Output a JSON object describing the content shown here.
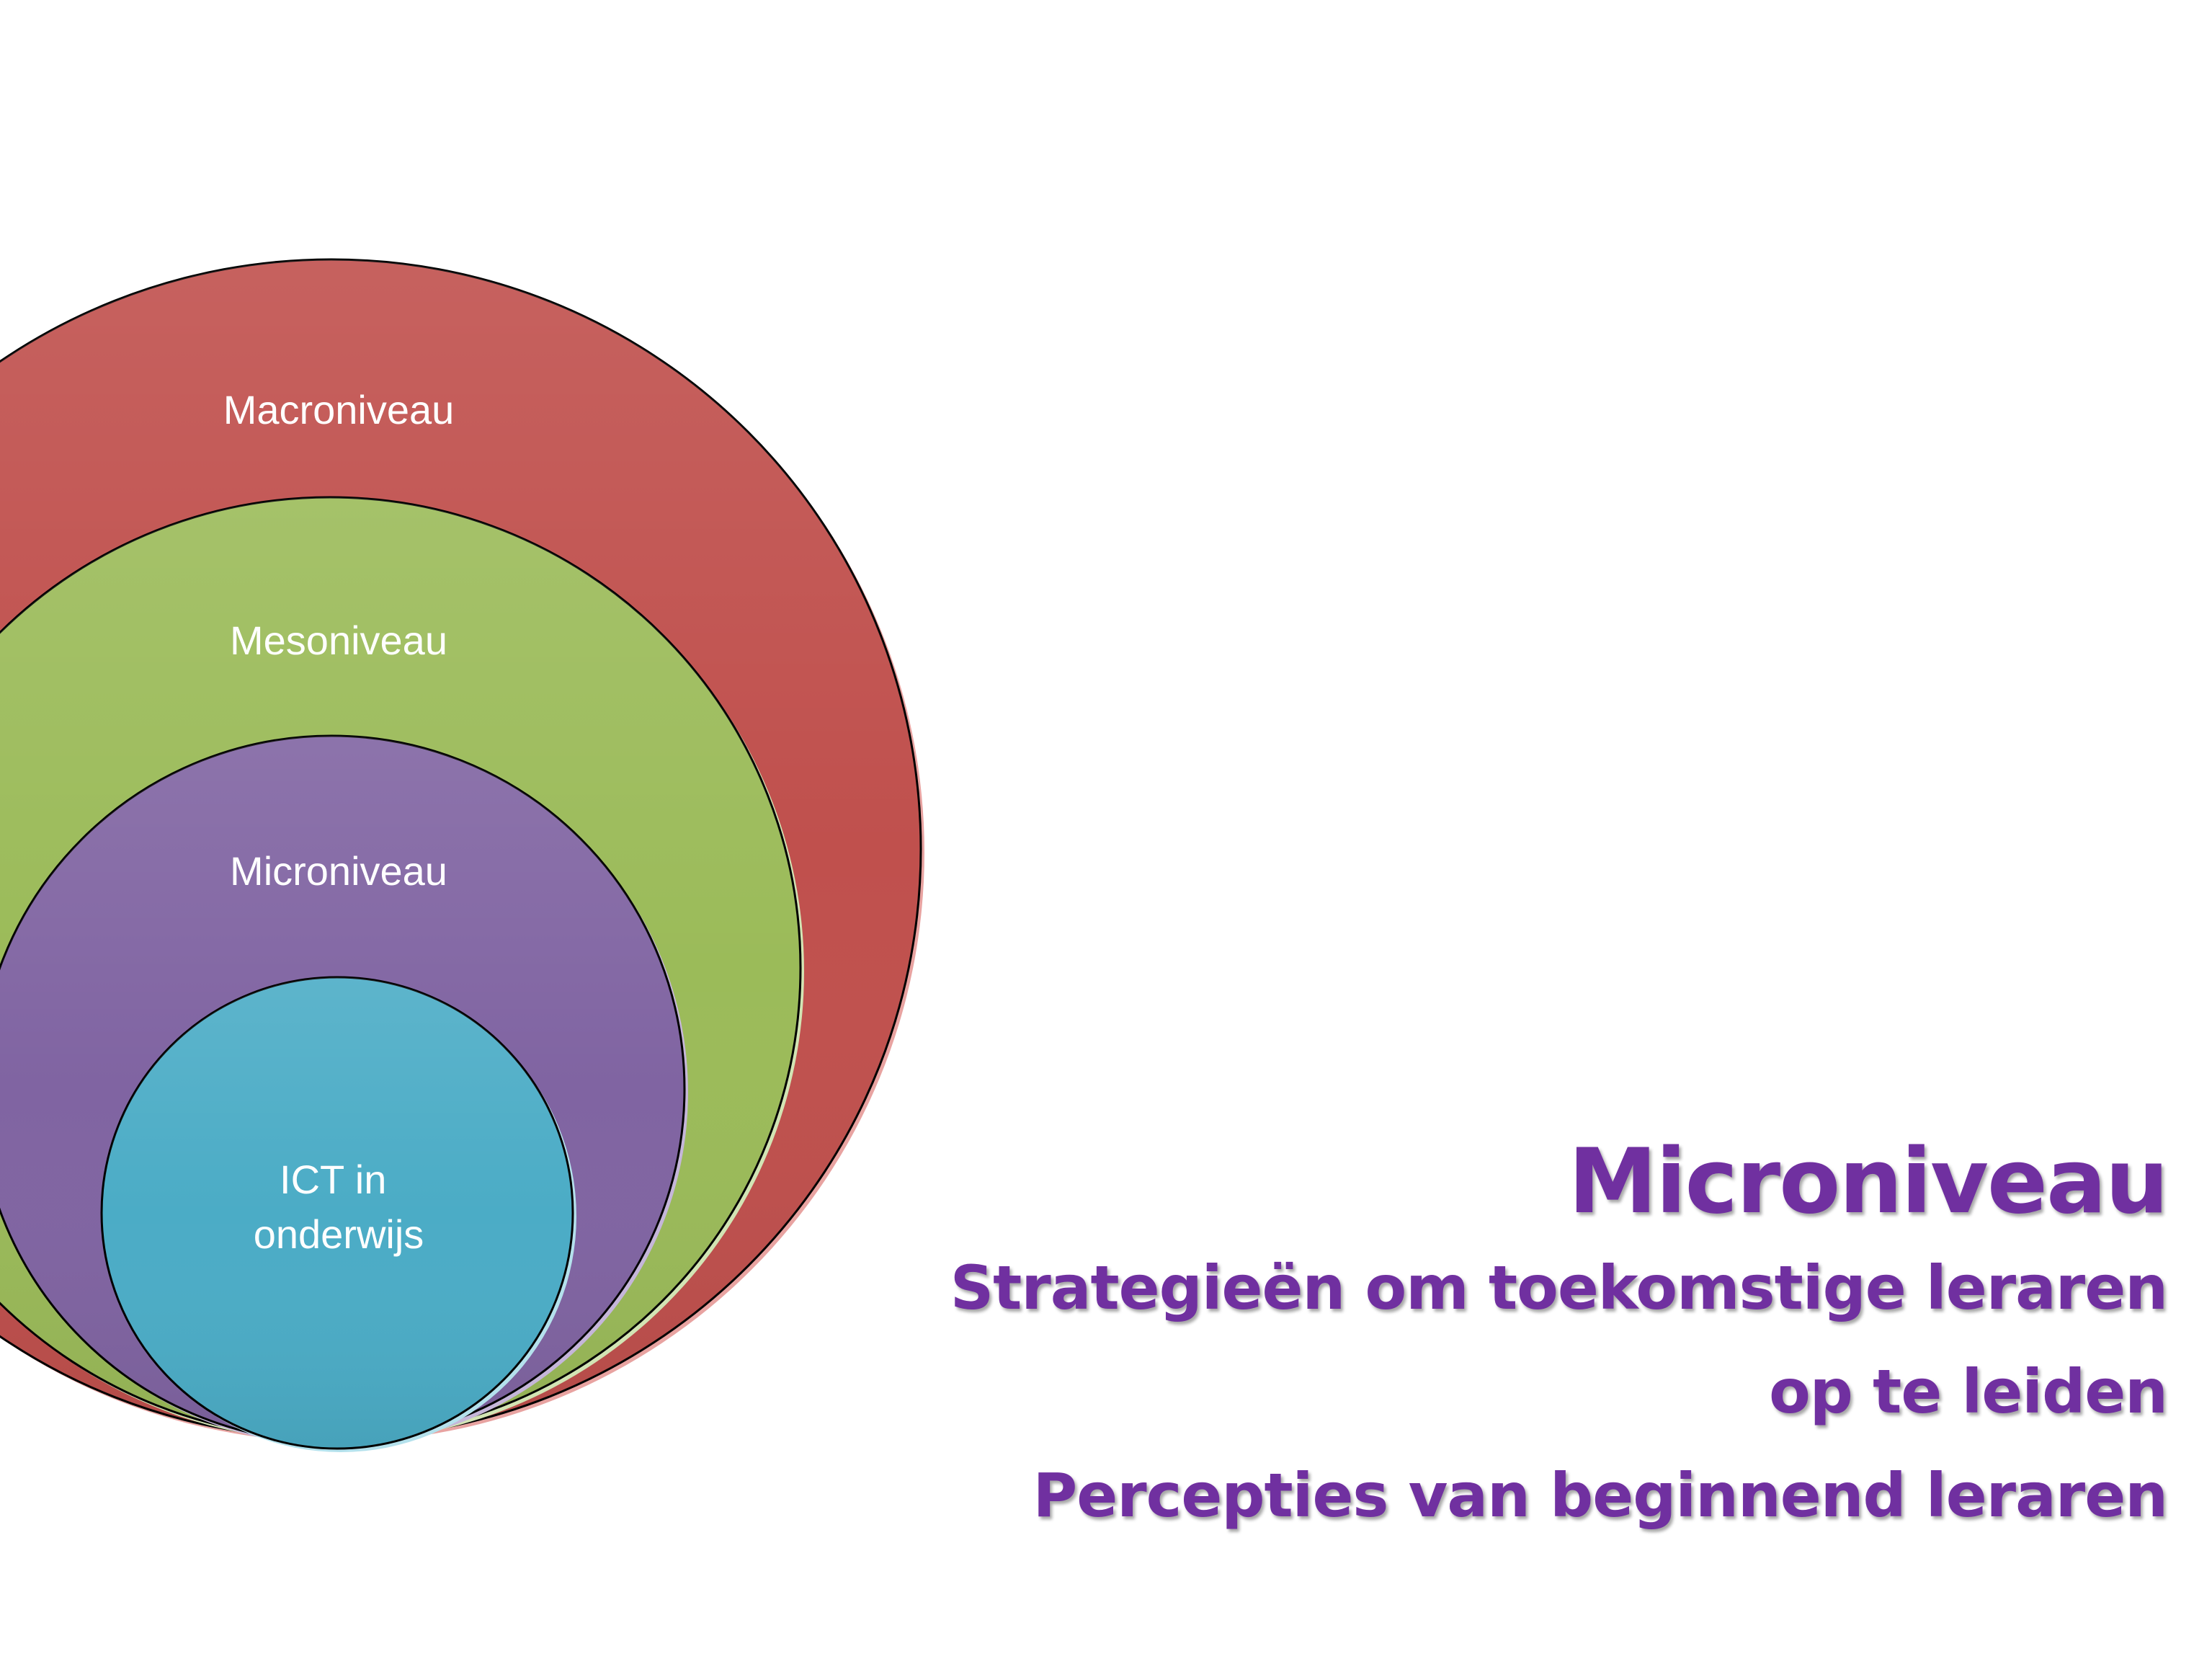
{
  "diagram": {
    "rings": [
      {
        "id": "macro",
        "label": "Macroniveau",
        "color": "#c0504d"
      },
      {
        "id": "meso",
        "label": "Mesoniveau",
        "color": "#9bbb59"
      },
      {
        "id": "micro",
        "label": "Microniveau",
        "color": "#8064a2"
      },
      {
        "id": "core",
        "label_lines": [
          "ICT in",
          "onderwijs"
        ],
        "color": "#4bacc6"
      }
    ]
  },
  "title": {
    "main": "Microniveau",
    "sub_lines": [
      "Strategieën om toekomstige leraren",
      "op te leiden",
      "Percepties van beginnend leraren"
    ]
  }
}
